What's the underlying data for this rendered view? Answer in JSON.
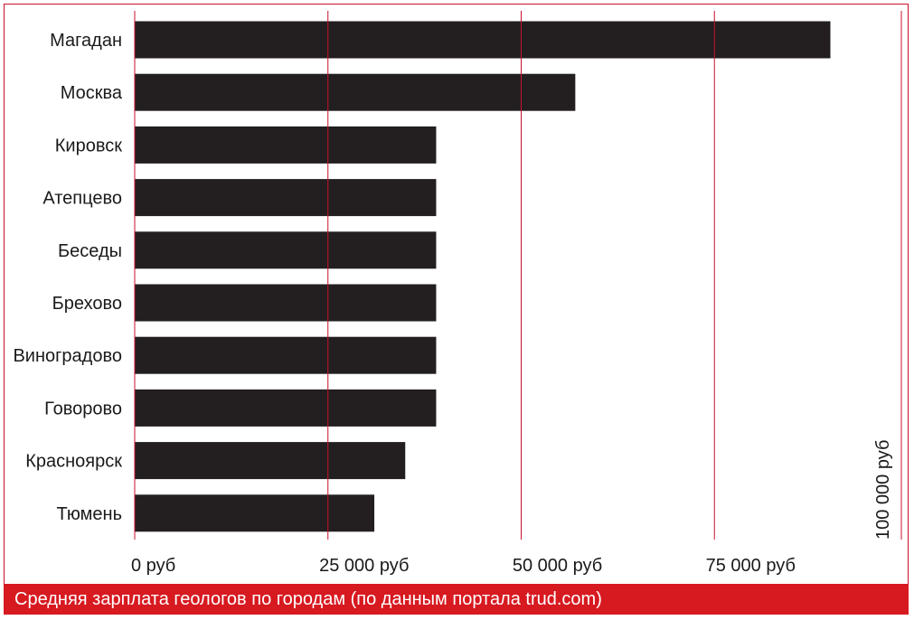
{
  "chart_data": {
    "type": "bar",
    "orientation": "horizontal",
    "categories": [
      "Магадан",
      "Москва",
      "Кировск",
      "Атепцево",
      "Беседы",
      "Брехово",
      "Виноградово",
      "Говорово",
      "Красноярск",
      "Тюмень"
    ],
    "values": [
      90000,
      57000,
      39000,
      39000,
      39000,
      39000,
      39000,
      39000,
      35000,
      31000
    ],
    "xlim": [
      0,
      100000
    ],
    "ticks": [
      {
        "value": 0,
        "label": "0 руб"
      },
      {
        "value": 25000,
        "label": "25 000 руб"
      },
      {
        "value": 50000,
        "label": "50 000 руб"
      },
      {
        "value": 75000,
        "label": "75 000 руб"
      },
      {
        "value": 100000,
        "label": "100 000 руб"
      }
    ],
    "grid": true,
    "bar_color": "#231f20",
    "grid_color": "#c8102e"
  },
  "caption": "Средняя зарплата геологов по городам (по данным портала trud.com)",
  "colors": {
    "accent": "#d71920",
    "text": "#1a1a1a"
  }
}
